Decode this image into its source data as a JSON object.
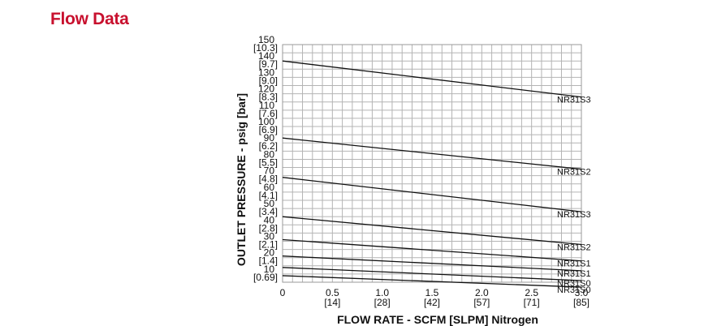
{
  "heading": "Flow Data",
  "colors": {
    "heading": "#c8102e",
    "line": "#111111",
    "grid": "#b4b4b4"
  },
  "chart_data": {
    "type": "line",
    "title": "",
    "xlabel": "FLOW RATE - SCFM [SLPM] Nitrogen",
    "ylabel": "OUTLET PRESSURE - psig [bar]",
    "xlim": [
      0,
      3.0
    ],
    "ylim": [
      5,
      150
    ],
    "grid": true,
    "x_ticks": [
      {
        "value": 0,
        "primary": "0",
        "secondary": ""
      },
      {
        "value": 0.5,
        "primary": "0.5",
        "secondary": "[14]"
      },
      {
        "value": 1.0,
        "primary": "1.0",
        "secondary": "[28]"
      },
      {
        "value": 1.5,
        "primary": "1.5",
        "secondary": "[42]"
      },
      {
        "value": 2.0,
        "primary": "2.0",
        "secondary": "[57]"
      },
      {
        "value": 2.5,
        "primary": "2.5",
        "secondary": "[71]"
      },
      {
        "value": 3.0,
        "primary": "3.0",
        "secondary": "[85]"
      }
    ],
    "y_ticks": [
      {
        "value": 150,
        "primary": "150",
        "secondary": "[10.3]"
      },
      {
        "value": 140,
        "primary": "140",
        "secondary": "[9.7]"
      },
      {
        "value": 130,
        "primary": "130",
        "secondary": "[9.0]"
      },
      {
        "value": 120,
        "primary": "120",
        "secondary": "[8.3]"
      },
      {
        "value": 110,
        "primary": "110",
        "secondary": "[7.6]"
      },
      {
        "value": 100,
        "primary": "100",
        "secondary": "[6.9]"
      },
      {
        "value": 90,
        "primary": "90",
        "secondary": "[6.2]"
      },
      {
        "value": 80,
        "primary": "80",
        "secondary": "[5.5]"
      },
      {
        "value": 70,
        "primary": "70",
        "secondary": "[4.8]"
      },
      {
        "value": 60,
        "primary": "60",
        "secondary": "[4.1]"
      },
      {
        "value": 50,
        "primary": "50",
        "secondary": "[3.4]"
      },
      {
        "value": 40,
        "primary": "40",
        "secondary": "[2.8]"
      },
      {
        "value": 30,
        "primary": "30",
        "secondary": "[2.1]"
      },
      {
        "value": 20,
        "primary": "20",
        "secondary": "[1.4]"
      },
      {
        "value": 10,
        "primary": "10",
        "secondary": "[0.69]"
      }
    ],
    "series": [
      {
        "name": "NR31S3",
        "x": [
          0,
          3.0
        ],
        "y": [
          140,
          118
        ]
      },
      {
        "name": "NR31S2",
        "x": [
          0,
          3.0
        ],
        "y": [
          93,
          74
        ]
      },
      {
        "name": "NR31S3",
        "x": [
          0,
          3.0
        ],
        "y": [
          69,
          48
        ]
      },
      {
        "name": "NR31S2",
        "x": [
          0,
          3.0
        ],
        "y": [
          45,
          28
        ]
      },
      {
        "name": "NR31S1",
        "x": [
          0,
          3.0
        ],
        "y": [
          31,
          18
        ]
      },
      {
        "name": "NR31S1",
        "x": [
          0,
          3.0
        ],
        "y": [
          21,
          12
        ]
      },
      {
        "name": "NR31S0",
        "x": [
          0,
          3.0
        ],
        "y": [
          14,
          6
        ]
      },
      {
        "name": "NR31S0",
        "x": [
          0,
          3.0
        ],
        "y": [
          9,
          2
        ]
      }
    ]
  }
}
